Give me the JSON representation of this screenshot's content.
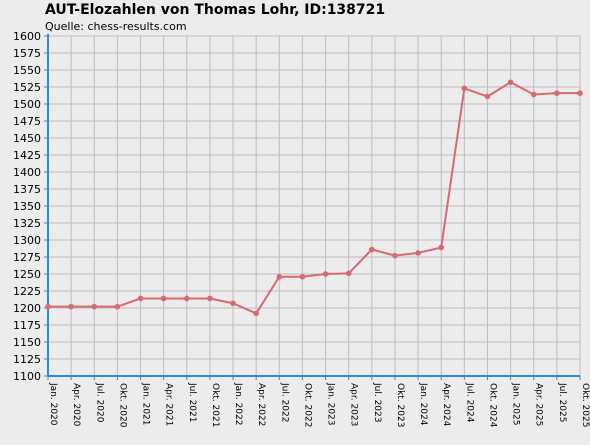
{
  "chart_data": {
    "type": "line",
    "title": "AUT-Elozahlen von Thomas Lohr, ID:138721",
    "subtitle": "Quelle: chess-results.com",
    "xlabel": "",
    "ylabel": "",
    "categories": [
      "Jan. 2020",
      "Apr. 2020",
      "Jul. 2020",
      "Okt. 2020",
      "Jan. 2021",
      "Apr. 2021",
      "Jul. 2021",
      "Okt. 2021",
      "Jan. 2022",
      "Apr. 2022",
      "Jul. 2022",
      "Okt. 2022",
      "Jan. 2023",
      "Apr. 2023",
      "Jul. 2023",
      "Okt. 2023",
      "Jan. 2024",
      "Apr. 2024",
      "Jul. 2024",
      "Okt. 2024",
      "Jan. 2025",
      "Apr. 2025",
      "Jul. 2025",
      "Okt. 2025"
    ],
    "series": [
      {
        "values": [
          1202,
          1202,
          1202,
          1202,
          1214,
          1214,
          1214,
          1214,
          1207,
          1192,
          1246,
          1246,
          1250,
          1251,
          1286,
          1277,
          1281,
          1289,
          1523,
          1511,
          1532,
          1514,
          1516,
          1516
        ]
      }
    ],
    "ylim": [
      1100,
      1600
    ],
    "yticks": [
      1100,
      1125,
      1150,
      1175,
      1200,
      1225,
      1250,
      1275,
      1300,
      1325,
      1350,
      1375,
      1400,
      1425,
      1450,
      1475,
      1500,
      1525,
      1550,
      1575,
      1600
    ],
    "grid": true,
    "legend": "none",
    "colors": {
      "line": "#d86a6e",
      "marker": "#d86a6e",
      "axis": "#2a8be0",
      "grid": "#bdbdbd",
      "background": "#ececec"
    }
  }
}
